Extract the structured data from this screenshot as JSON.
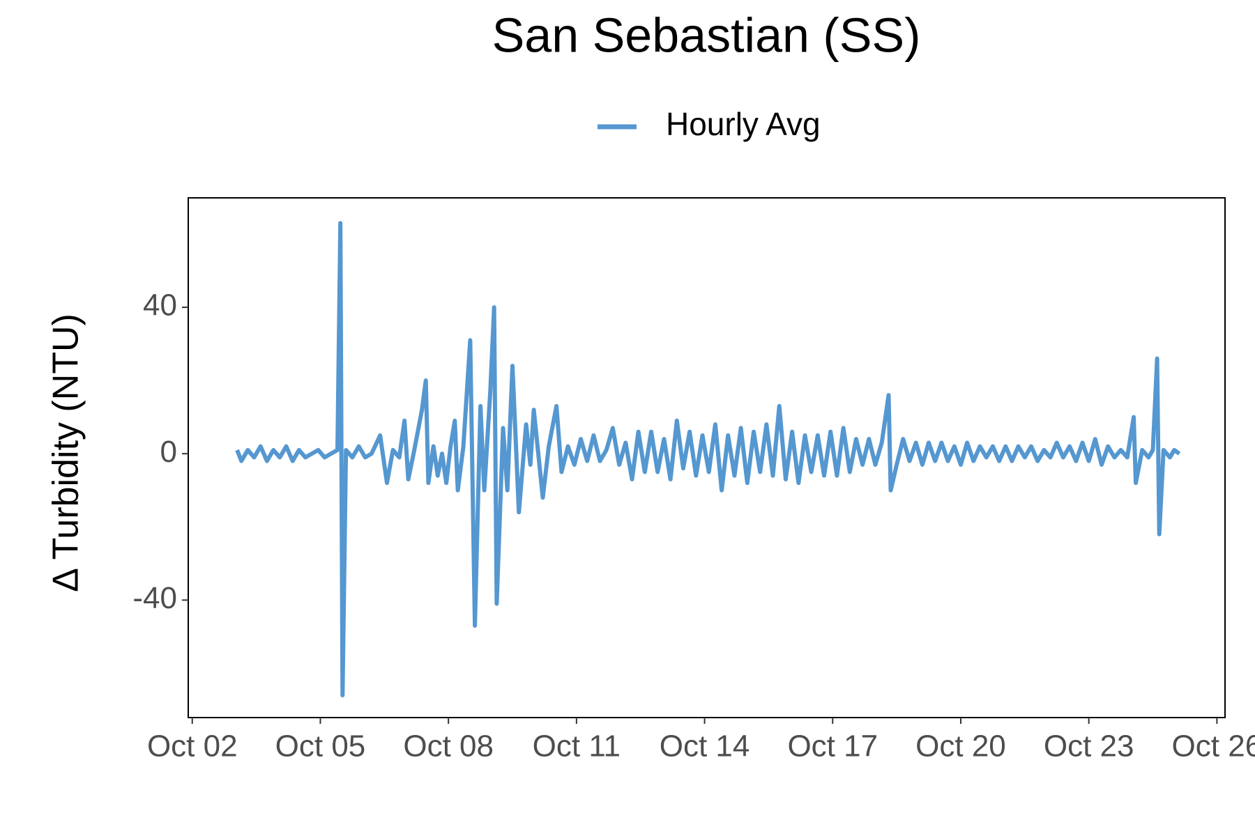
{
  "chart_data": {
    "type": "line",
    "title": "San Sebastian (SS)",
    "y_label": "Δ Turbidity (NTU)",
    "x": [
      3.05,
      3.15,
      3.3,
      3.45,
      3.6,
      3.75,
      3.9,
      4.05,
      4.2,
      4.35,
      4.5,
      4.65,
      4.8,
      4.95,
      5.1,
      5.25,
      5.4,
      5.47,
      5.52,
      5.6,
      5.75,
      5.9,
      6.05,
      6.2,
      6.4,
      6.56,
      6.7,
      6.85,
      6.97,
      7.06,
      7.2,
      7.38,
      7.47,
      7.53,
      7.65,
      7.75,
      7.85,
      7.95,
      8.05,
      8.15,
      8.22,
      8.35,
      8.51,
      8.62,
      8.75,
      8.84,
      8.98,
      9.07,
      9.13,
      9.28,
      9.38,
      9.5,
      9.65,
      9.82,
      9.92,
      10.0,
      10.21,
      10.35,
      10.53,
      10.65,
      10.8,
      10.95,
      11.1,
      11.25,
      11.4,
      11.55,
      11.7,
      11.85,
      12.0,
      12.15,
      12.3,
      12.45,
      12.6,
      12.75,
      12.9,
      13.05,
      13.2,
      13.35,
      13.5,
      13.65,
      13.8,
      13.95,
      14.1,
      14.25,
      14.4,
      14.55,
      14.7,
      14.85,
      15.0,
      15.15,
      15.3,
      15.45,
      15.6,
      15.75,
      15.9,
      16.05,
      16.2,
      16.35,
      16.5,
      16.65,
      16.8,
      16.95,
      17.1,
      17.25,
      17.4,
      17.55,
      17.7,
      17.85,
      18.0,
      18.15,
      18.31,
      18.36,
      18.5,
      18.65,
      18.8,
      18.95,
      19.1,
      19.25,
      19.4,
      19.55,
      19.7,
      19.85,
      20.0,
      20.15,
      20.3,
      20.45,
      20.6,
      20.75,
      20.9,
      21.05,
      21.2,
      21.35,
      21.5,
      21.65,
      21.8,
      21.95,
      22.1,
      22.25,
      22.4,
      22.55,
      22.7,
      22.85,
      23.0,
      23.15,
      23.3,
      23.45,
      23.6,
      23.75,
      23.9,
      24.05,
      24.1,
      24.25,
      24.4,
      24.5,
      24.6,
      24.65,
      24.75,
      24.9,
      25.0,
      25.12
    ],
    "series": [
      {
        "name": "Hourly Avg",
        "color": "#5597d0",
        "values": [
          1,
          -2,
          1,
          -1,
          2,
          -2,
          1,
          -1,
          2,
          -2,
          1,
          -1,
          0,
          1,
          -1,
          0,
          1,
          63,
          -66,
          1,
          -1,
          2,
          -1,
          0,
          5,
          -8,
          1,
          -1,
          9,
          -7,
          1,
          12,
          20,
          -8,
          2,
          -6,
          0,
          -8,
          2,
          9,
          -10,
          2,
          31,
          -47,
          13,
          -10,
          17,
          40,
          -41,
          7,
          -10,
          24,
          -16,
          8,
          -3,
          12,
          -12,
          2,
          13,
          -5,
          2,
          -3,
          4,
          -2,
          5,
          -2,
          1,
          7,
          -3,
          3,
          -7,
          6,
          -5,
          6,
          -5,
          4,
          -7,
          9,
          -4,
          6,
          -6,
          5,
          -5,
          8,
          -10,
          5,
          -6,
          7,
          -8,
          6,
          -5,
          8,
          -6,
          13,
          -7,
          6,
          -8,
          5,
          -5,
          5,
          -6,
          6,
          -6,
          7,
          -5,
          4,
          -3,
          4,
          -3,
          3,
          16,
          -10,
          -3,
          4,
          -2,
          3,
          -3,
          3,
          -2,
          3,
          -2,
          2,
          -3,
          3,
          -2,
          2,
          -1,
          2,
          -2,
          2,
          -2,
          2,
          -1,
          2,
          -2,
          1,
          -1,
          3,
          -1,
          2,
          -2,
          3,
          -2,
          4,
          -3,
          2,
          -1,
          1,
          -1,
          10,
          -8,
          1,
          -1,
          1,
          26,
          -22,
          1,
          -1,
          1,
          0
        ]
      }
    ],
    "xlim": [
      1.906,
      26.19
    ],
    "xticks": [
      {
        "value": 2,
        "label": "Oct 02"
      },
      {
        "value": 5,
        "label": "Oct 05"
      },
      {
        "value": 8,
        "label": "Oct 08"
      },
      {
        "value": 11,
        "label": "Oct 11"
      },
      {
        "value": 14,
        "label": "Oct 14"
      },
      {
        "value": 17,
        "label": "Oct 17"
      },
      {
        "value": 20,
        "label": "Oct 20"
      },
      {
        "value": 23,
        "label": "Oct 23"
      },
      {
        "value": 26,
        "label": "Oct 26"
      }
    ],
    "ylim": [
      -72.1,
      69.9
    ],
    "yticks": [
      -40,
      0,
      40
    ],
    "grid": false,
    "legend": "top"
  }
}
